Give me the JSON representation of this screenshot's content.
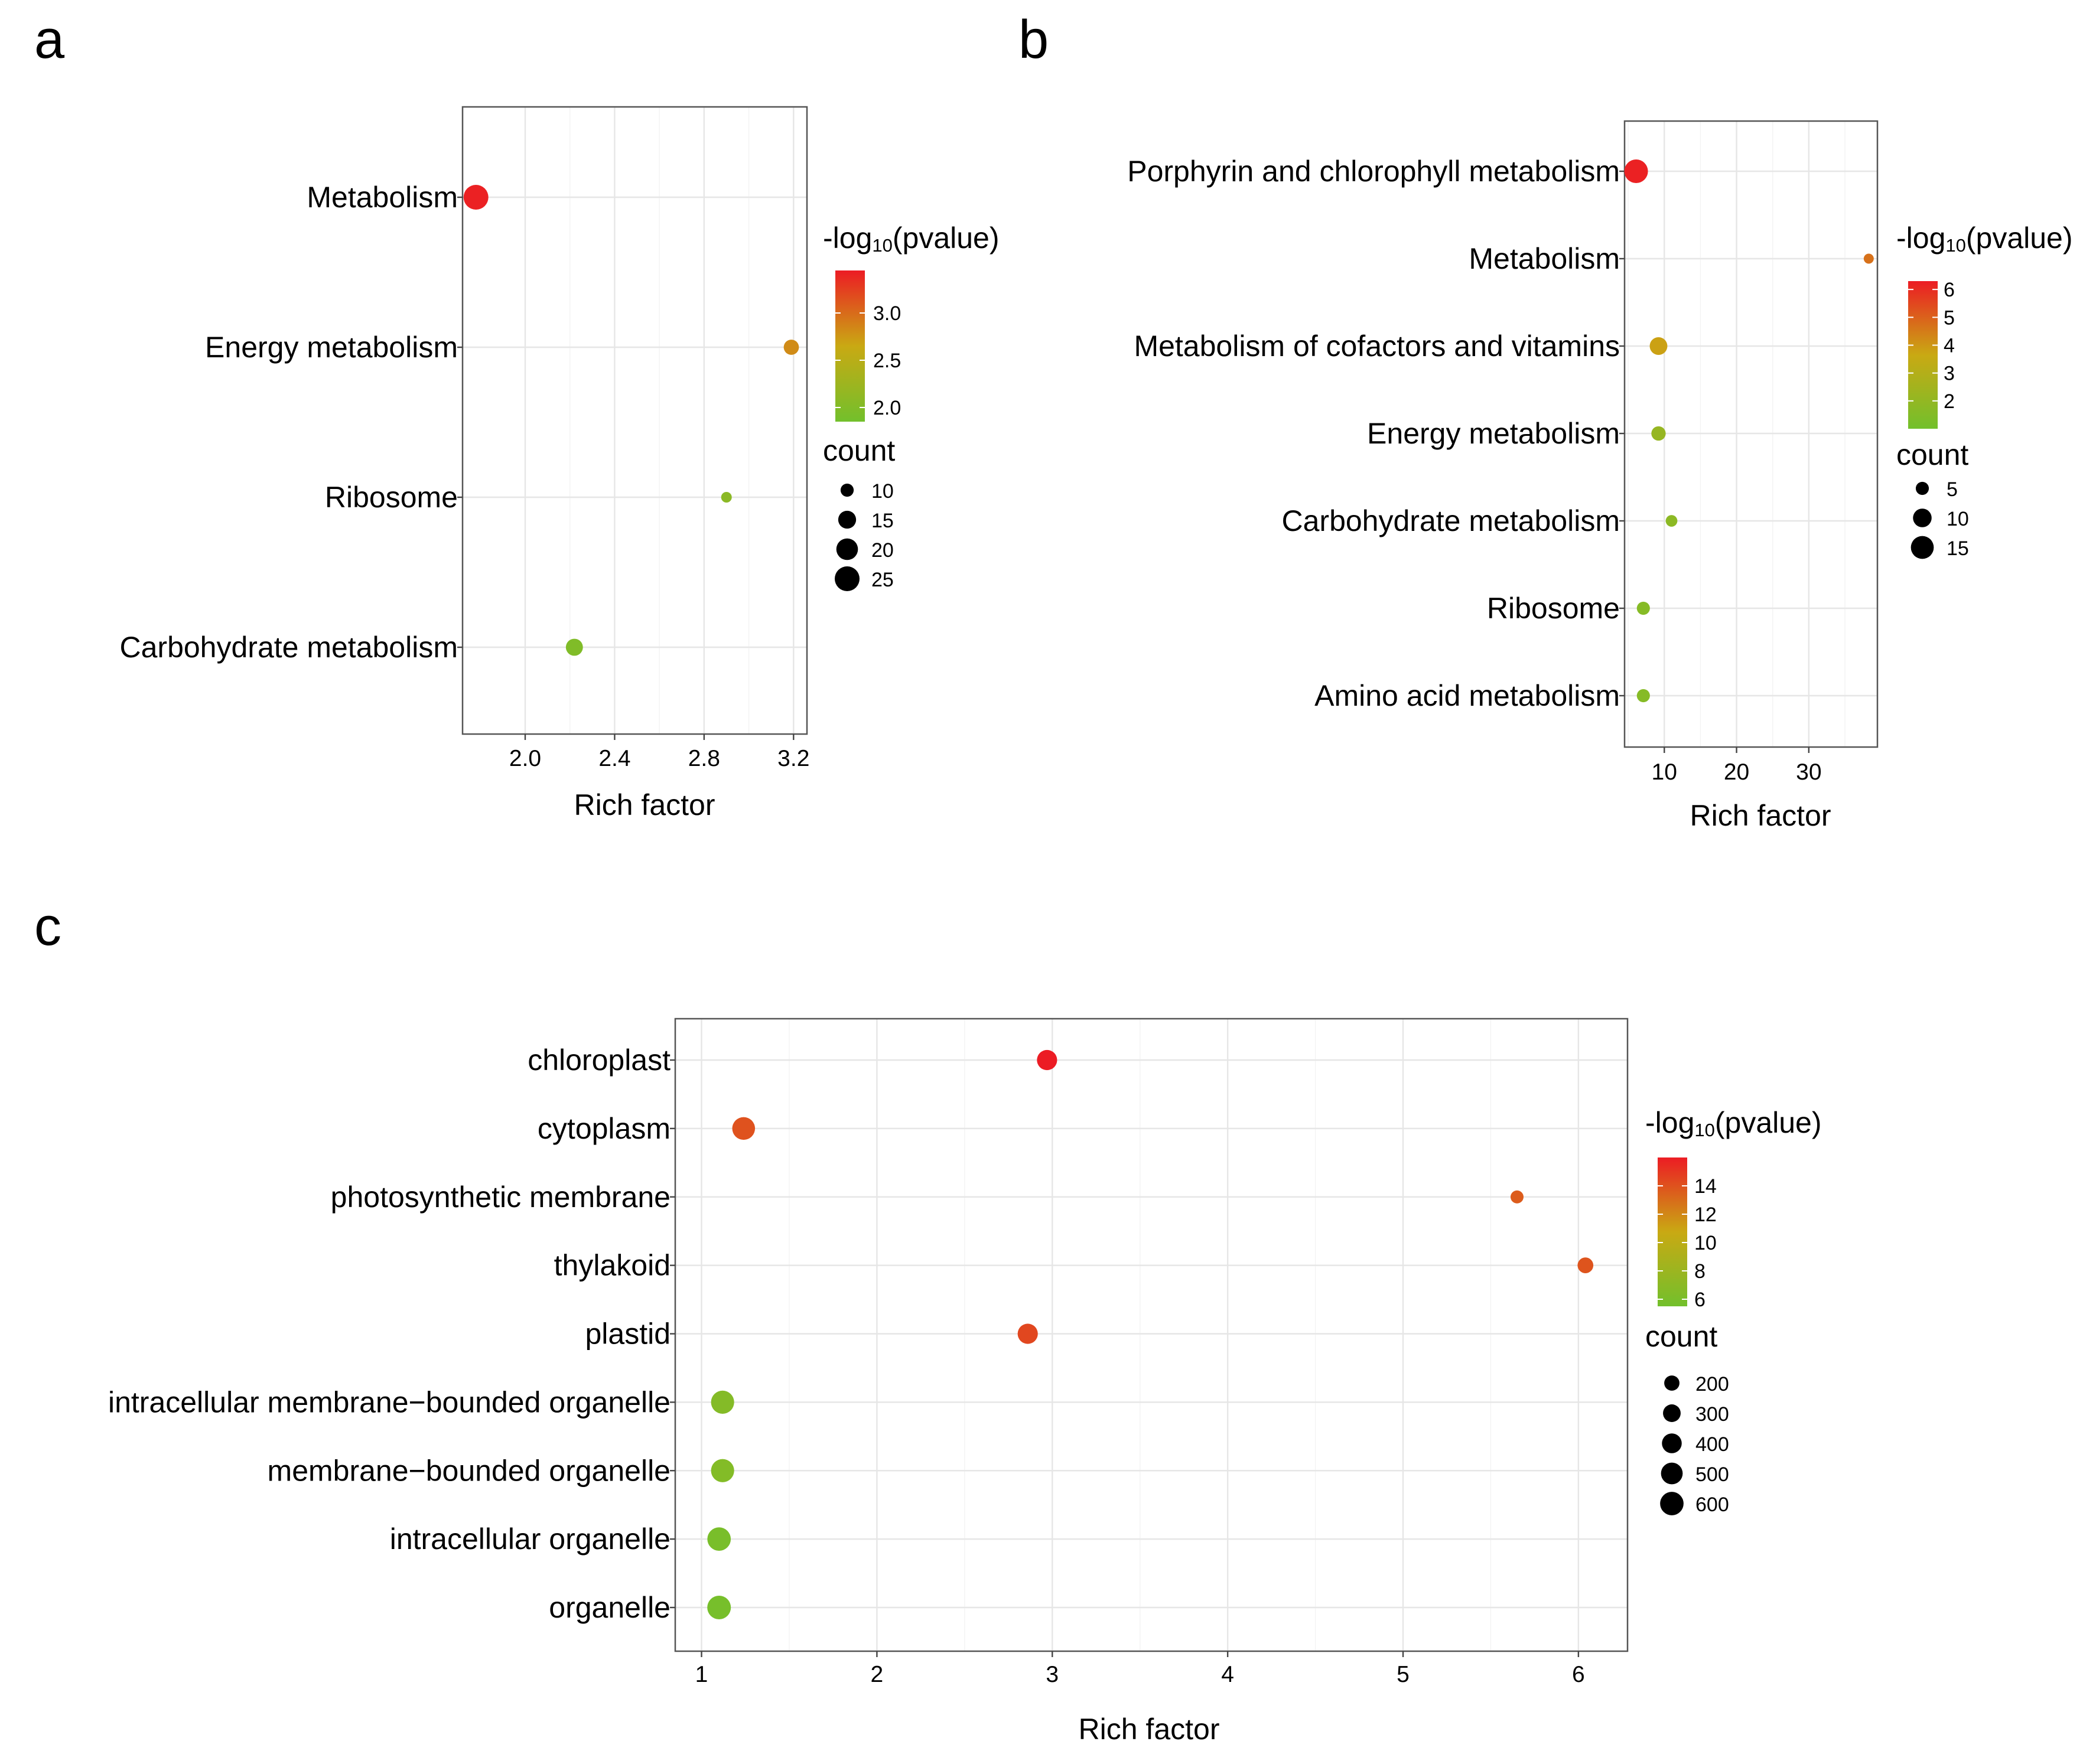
{
  "chart_data": [
    {
      "panel": "a",
      "type": "scatter",
      "title": "",
      "xlabel": "Rich factor",
      "ylabel": "",
      "xlim": [
        1.72,
        3.26
      ],
      "x_ticks": [
        2.0,
        2.4,
        2.8,
        3.2
      ],
      "x_tick_labels": [
        "2.0",
        "2.4",
        "2.8",
        "3.2"
      ],
      "x_minor": [
        2.2,
        2.6,
        3.0
      ],
      "categories": [
        "Metabolism",
        "Energy metabolism",
        "Ribosome",
        "Carbohydrate metabolism"
      ],
      "points": [
        {
          "category": "Metabolism",
          "x": 1.78,
          "count": 25,
          "neglog10p": 3.42
        },
        {
          "category": "Energy metabolism",
          "x": 3.19,
          "count": 12,
          "neglog10p": 2.82
        },
        {
          "category": "Ribosome",
          "x": 2.9,
          "count": 8,
          "neglog10p": 2.08
        },
        {
          "category": "Carbohydrate metabolism",
          "x": 2.22,
          "count": 14,
          "neglog10p": 1.98
        }
      ],
      "color_legend": {
        "title_prefix": "-log",
        "title_sub": "10",
        "title_suffix": "(pvalue)",
        "min": 1.85,
        "max": 3.45,
        "ticks": [
          3.0,
          2.5,
          2.0
        ],
        "tick_labels": [
          "3.0",
          "2.5",
          "2.0"
        ]
      },
      "size_legend": {
        "title": "count",
        "values": [
          10,
          15,
          20,
          25
        ],
        "labels": [
          "10",
          "15",
          "20",
          "25"
        ],
        "range": [
          8,
          25
        ]
      }
    },
    {
      "panel": "b",
      "type": "scatter",
      "title": "",
      "xlabel": "Rich factor",
      "ylabel": "",
      "xlim": [
        4.5,
        39.5
      ],
      "x_ticks": [
        10,
        20,
        30
      ],
      "x_tick_labels": [
        "10",
        "20",
        "30"
      ],
      "x_minor": [
        5,
        15,
        25,
        35
      ],
      "categories": [
        "Porphyrin and chlorophyll metabolism",
        "Metabolism",
        "Metabolism of cofactors and vitamins",
        "Energy metabolism",
        "Carbohydrate metabolism",
        "Ribosome",
        "Amino acid metabolism"
      ],
      "points": [
        {
          "category": "Porphyrin and chlorophyll metabolism",
          "x": 6.1,
          "count": 16,
          "neglog10p": 6.2
        },
        {
          "category": "Metabolism",
          "x": 38.3,
          "count": 3,
          "neglog10p": 4.7
        },
        {
          "category": "Metabolism of cofactors and vitamins",
          "x": 9.2,
          "count": 9,
          "neglog10p": 3.8
        },
        {
          "category": "Energy metabolism",
          "x": 9.2,
          "count": 6,
          "neglog10p": 2.1
        },
        {
          "category": "Carbohydrate metabolism",
          "x": 11.0,
          "count": 4,
          "neglog10p": 1.8
        },
        {
          "category": "Ribosome",
          "x": 7.1,
          "count": 5,
          "neglog10p": 1.6
        },
        {
          "category": "Amino acid metabolism",
          "x": 7.1,
          "count": 5,
          "neglog10p": 1.6
        }
      ],
      "color_legend": {
        "title_prefix": "-log",
        "title_sub": "10",
        "title_suffix": "(pvalue)",
        "min": 1.0,
        "max": 6.3,
        "ticks": [
          6,
          5,
          4,
          3,
          2
        ],
        "tick_labels": [
          "6",
          "5",
          "4",
          "3",
          "2"
        ]
      },
      "size_legend": {
        "title": "count",
        "values": [
          5,
          10,
          15
        ],
        "labels": [
          "5",
          "10",
          "15"
        ],
        "range": [
          3,
          16
        ]
      }
    },
    {
      "panel": "c",
      "type": "scatter",
      "title": "",
      "xlabel": "Rich factor",
      "ylabel": "",
      "xlim": [
        0.85,
        6.28
      ],
      "x_ticks": [
        1,
        2,
        3,
        4,
        5,
        6
      ],
      "x_tick_labels": [
        "1",
        "2",
        "3",
        "4",
        "5",
        "6"
      ],
      "x_minor": [
        1.5,
        2.5,
        3.5,
        4.5,
        5.5
      ],
      "categories": [
        "chloroplast",
        "cytoplasm",
        "photosynthetic membrane",
        "thylakoid",
        "plastid",
        "intracellular membrane−bounded organelle",
        "membrane−bounded organelle",
        "intracellular organelle",
        "organelle"
      ],
      "points": [
        {
          "category": "chloroplast",
          "x": 2.97,
          "count": 420,
          "neglog10p": 16.0
        },
        {
          "category": "cytoplasm",
          "x": 1.24,
          "count": 560,
          "neglog10p": 14.0
        },
        {
          "category": "photosynthetic membrane",
          "x": 5.65,
          "count": 120,
          "neglog10p": 13.6
        },
        {
          "category": "thylakoid",
          "x": 6.04,
          "count": 220,
          "neglog10p": 13.9
        },
        {
          "category": "plastid",
          "x": 2.86,
          "count": 420,
          "neglog10p": 14.4
        },
        {
          "category": "intracellular membrane−bounded organelle",
          "x": 1.12,
          "count": 580,
          "neglog10p": 6.6
        },
        {
          "category": "membrane−bounded organelle",
          "x": 1.12,
          "count": 580,
          "neglog10p": 6.5
        },
        {
          "category": "intracellular organelle",
          "x": 1.1,
          "count": 600,
          "neglog10p": 5.9
        },
        {
          "category": "organelle",
          "x": 1.1,
          "count": 610,
          "neglog10p": 5.8
        }
      ],
      "color_legend": {
        "title_prefix": "-log",
        "title_sub": "10",
        "title_suffix": "(pvalue)",
        "min": 5.5,
        "max": 16.0,
        "ticks": [
          14,
          12,
          10,
          8,
          6
        ],
        "tick_labels": [
          "14",
          "12",
          "10",
          "8",
          "6"
        ]
      },
      "size_legend": {
        "title": "count",
        "values": [
          200,
          300,
          400,
          500,
          600
        ],
        "labels": [
          "200",
          "300",
          "400",
          "500",
          "600"
        ],
        "range": [
          120,
          610
        ]
      }
    }
  ],
  "colors": {
    "low": "#72c02c",
    "mid": "#c9a913",
    "high": "#ec1c24",
    "point_legend": "#000000"
  }
}
